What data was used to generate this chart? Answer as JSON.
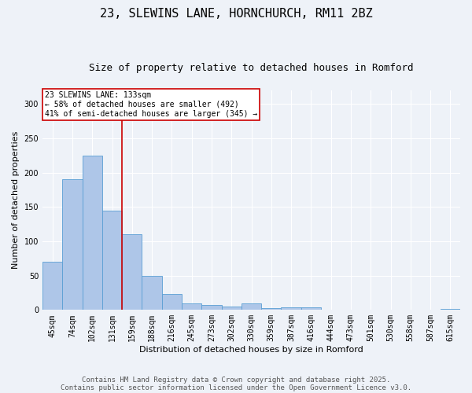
{
  "title": "23, SLEWINS LANE, HORNCHURCH, RM11 2BZ",
  "subtitle": "Size of property relative to detached houses in Romford",
  "xlabel": "Distribution of detached houses by size in Romford",
  "ylabel": "Number of detached properties",
  "bar_labels": [
    "45sqm",
    "74sqm",
    "102sqm",
    "131sqm",
    "159sqm",
    "188sqm",
    "216sqm",
    "245sqm",
    "273sqm",
    "302sqm",
    "330sqm",
    "359sqm",
    "387sqm",
    "416sqm",
    "444sqm",
    "473sqm",
    "501sqm",
    "530sqm",
    "558sqm",
    "587sqm",
    "615sqm"
  ],
  "bar_values": [
    70,
    190,
    225,
    145,
    110,
    50,
    23,
    9,
    7,
    5,
    9,
    3,
    4,
    4,
    0,
    0,
    0,
    0,
    0,
    0,
    2
  ],
  "bar_color": "#aec6e8",
  "bar_edge_color": "#5a9fd4",
  "vline_x_idx": 3,
  "vline_color": "#cc0000",
  "annotation_text": "23 SLEWINS LANE: 133sqm\n← 58% of detached houses are smaller (492)\n41% of semi-detached houses are larger (345) →",
  "annotation_box_color": "#ffffff",
  "annotation_box_edge_color": "#cc0000",
  "ylim": [
    0,
    320
  ],
  "yticks": [
    0,
    50,
    100,
    150,
    200,
    250,
    300
  ],
  "footnote_line1": "Contains HM Land Registry data © Crown copyright and database right 2025.",
  "footnote_line2": "Contains public sector information licensed under the Open Government Licence v3.0.",
  "bg_color": "#eef2f8",
  "plot_bg_color": "#eef2f8",
  "title_fontsize": 11,
  "subtitle_fontsize": 9,
  "tick_fontsize": 7,
  "axis_label_fontsize": 8,
  "annotation_fontsize": 7,
  "footnote_fontsize": 6.5
}
